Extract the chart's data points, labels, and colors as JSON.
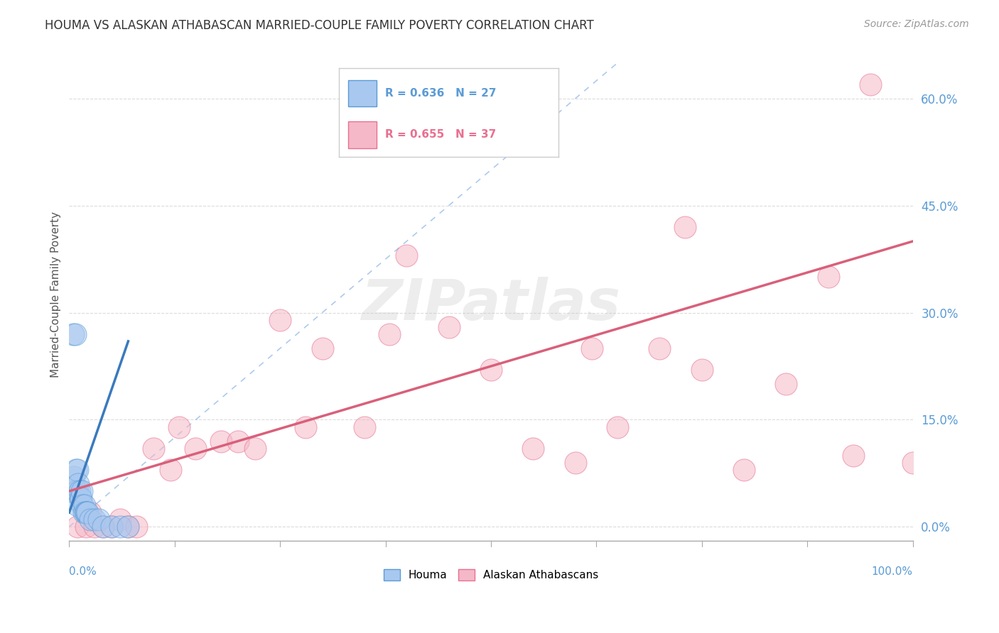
{
  "title": "HOUMA VS ALASKAN ATHABASCAN MARRIED-COUPLE FAMILY POVERTY CORRELATION CHART",
  "source": "Source: ZipAtlas.com",
  "ylabel": "Married-Couple Family Poverty",
  "ytick_vals": [
    0,
    15,
    30,
    45,
    60
  ],
  "xlim": [
    0,
    100
  ],
  "ylim": [
    -2,
    67
  ],
  "houma_R": 0.636,
  "houma_N": 27,
  "alaskan_R": 0.655,
  "alaskan_N": 37,
  "houma_color": "#a8c8f0",
  "alaskan_color": "#f5b8c8",
  "houma_edge_color": "#5b9bd5",
  "alaskan_edge_color": "#e87090",
  "houma_line_color": "#3a7abd",
  "alaskan_line_color": "#d9607a",
  "background_color": "#ffffff",
  "grid_color": "#cccccc",
  "watermark_text": "ZIPatlas",
  "houma_points_x": [
    0.3,
    0.5,
    0.6,
    0.7,
    0.8,
    0.9,
    1.0,
    1.0,
    1.1,
    1.2,
    1.3,
    1.4,
    1.5,
    1.6,
    1.7,
    1.8,
    1.9,
    2.0,
    2.1,
    2.2,
    2.5,
    3.0,
    3.5,
    4.0,
    5.0,
    6.0,
    7.0
  ],
  "houma_points_y": [
    5,
    27,
    7,
    27,
    8,
    5,
    8,
    3,
    6,
    5,
    4,
    4,
    5,
    3,
    2,
    3,
    2,
    2,
    2,
    2,
    1,
    1,
    1,
    0,
    0,
    0,
    0
  ],
  "alaskan_points_x": [
    1.0,
    2.0,
    2.5,
    3.0,
    4.0,
    5.0,
    6.0,
    7.0,
    8.0,
    10.0,
    12.0,
    13.0,
    15.0,
    18.0,
    20.0,
    22.0,
    25.0,
    28.0,
    30.0,
    35.0,
    38.0,
    40.0,
    45.0,
    50.0,
    55.0,
    60.0,
    62.0,
    65.0,
    70.0,
    73.0,
    75.0,
    80.0,
    85.0,
    90.0,
    93.0,
    95.0,
    100.0
  ],
  "alaskan_points_y": [
    0,
    0,
    2,
    0,
    0,
    0,
    1,
    0,
    0,
    11,
    8,
    14,
    11,
    12,
    12,
    11,
    29,
    14,
    25,
    14,
    27,
    38,
    28,
    22,
    11,
    9,
    25,
    14,
    25,
    42,
    22,
    8,
    20,
    35,
    10,
    62,
    9
  ],
  "houma_line_x0": 0,
  "houma_line_y0": 2,
  "houma_line_x1": 7,
  "houma_line_y1": 26,
  "alaskan_line_x0": 0,
  "alaskan_line_y0": 5,
  "alaskan_line_x1": 100,
  "alaskan_line_y1": 40,
  "diag_line_x": [
    0,
    65
  ],
  "diag_line_y": [
    0,
    65
  ]
}
